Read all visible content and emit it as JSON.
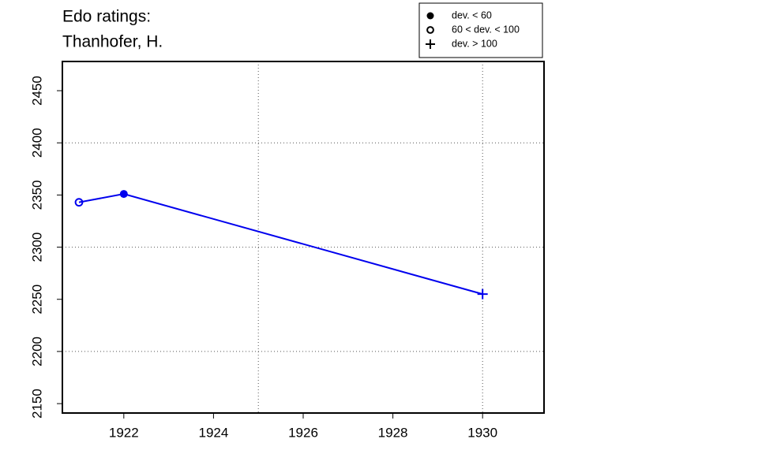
{
  "chart_data": {
    "type": "line",
    "title_lines": [
      "Edo ratings:",
      "Thanhofer, H."
    ],
    "x": [
      1921,
      1922,
      1930
    ],
    "values": [
      2343,
      2351,
      2255
    ],
    "markers": [
      "open",
      "filled",
      "plus"
    ],
    "color": "#0000ee",
    "xlim": [
      1920.63,
      1931.37
    ],
    "ylim": [
      2141,
      2478
    ],
    "xticks": [
      1922,
      1924,
      1926,
      1928,
      1930
    ],
    "yticks": [
      2150,
      2200,
      2250,
      2300,
      2350,
      2400,
      2450
    ],
    "grid_x": [
      1925,
      1930
    ],
    "grid_y": [
      2200,
      2300,
      2400
    ],
    "legend": [
      {
        "marker": "filled",
        "label": "dev. < 60"
      },
      {
        "marker": "open",
        "label": "60 < dev. < 100"
      },
      {
        "marker": "plus",
        "label": "dev. > 100"
      }
    ]
  }
}
